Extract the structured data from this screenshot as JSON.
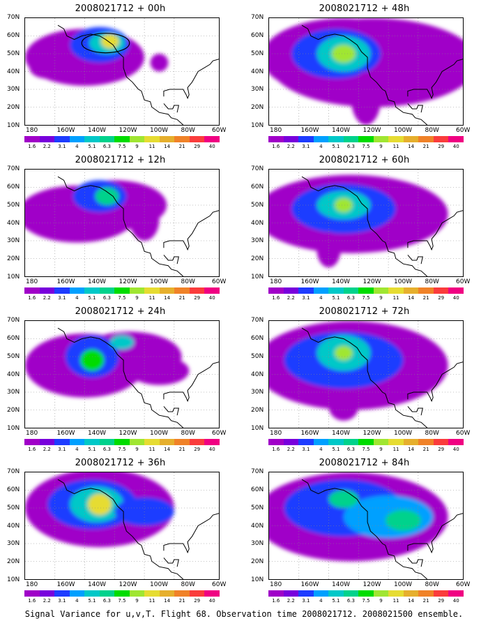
{
  "caption": "Signal Variance for u,v,T. Flight 68. Observation time 2008021712. 2008021500 ensemble.",
  "lat_labels": [
    "70N",
    "60N",
    "50N",
    "40N",
    "30N",
    "20N",
    "10N"
  ],
  "lon_labels": [
    "180",
    "160W",
    "140W",
    "120W",
    "100W",
    "80W",
    "60W"
  ],
  "colorbar": {
    "colors": [
      "#a000c8",
      "#7800dc",
      "#1e3cff",
      "#00a0ff",
      "#00c8c8",
      "#00d28c",
      "#00dc00",
      "#a0e632",
      "#e6dc32",
      "#e6af2d",
      "#f08228",
      "#fa3c3c",
      "#f00082"
    ],
    "labels": [
      "1.6",
      "2.2",
      "3.1",
      "4",
      "5.1",
      "6.3",
      "7.5",
      "9",
      "11",
      "14",
      "21",
      "29",
      "40"
    ]
  },
  "panels": [
    {
      "title": "2008021712 + 00h",
      "time": "00h"
    },
    {
      "title": "2008021712 + 48h",
      "time": "48h"
    },
    {
      "title": "2008021712 + 12h",
      "time": "12h"
    },
    {
      "title": "2008021712 + 60h",
      "time": "60h"
    },
    {
      "title": "2008021712 + 24h",
      "time": "24h"
    },
    {
      "title": "2008021712 + 72h",
      "time": "72h"
    },
    {
      "title": "2008021712 + 36h",
      "time": "36h"
    },
    {
      "title": "2008021712 + 84h",
      "time": "84h"
    }
  ]
}
